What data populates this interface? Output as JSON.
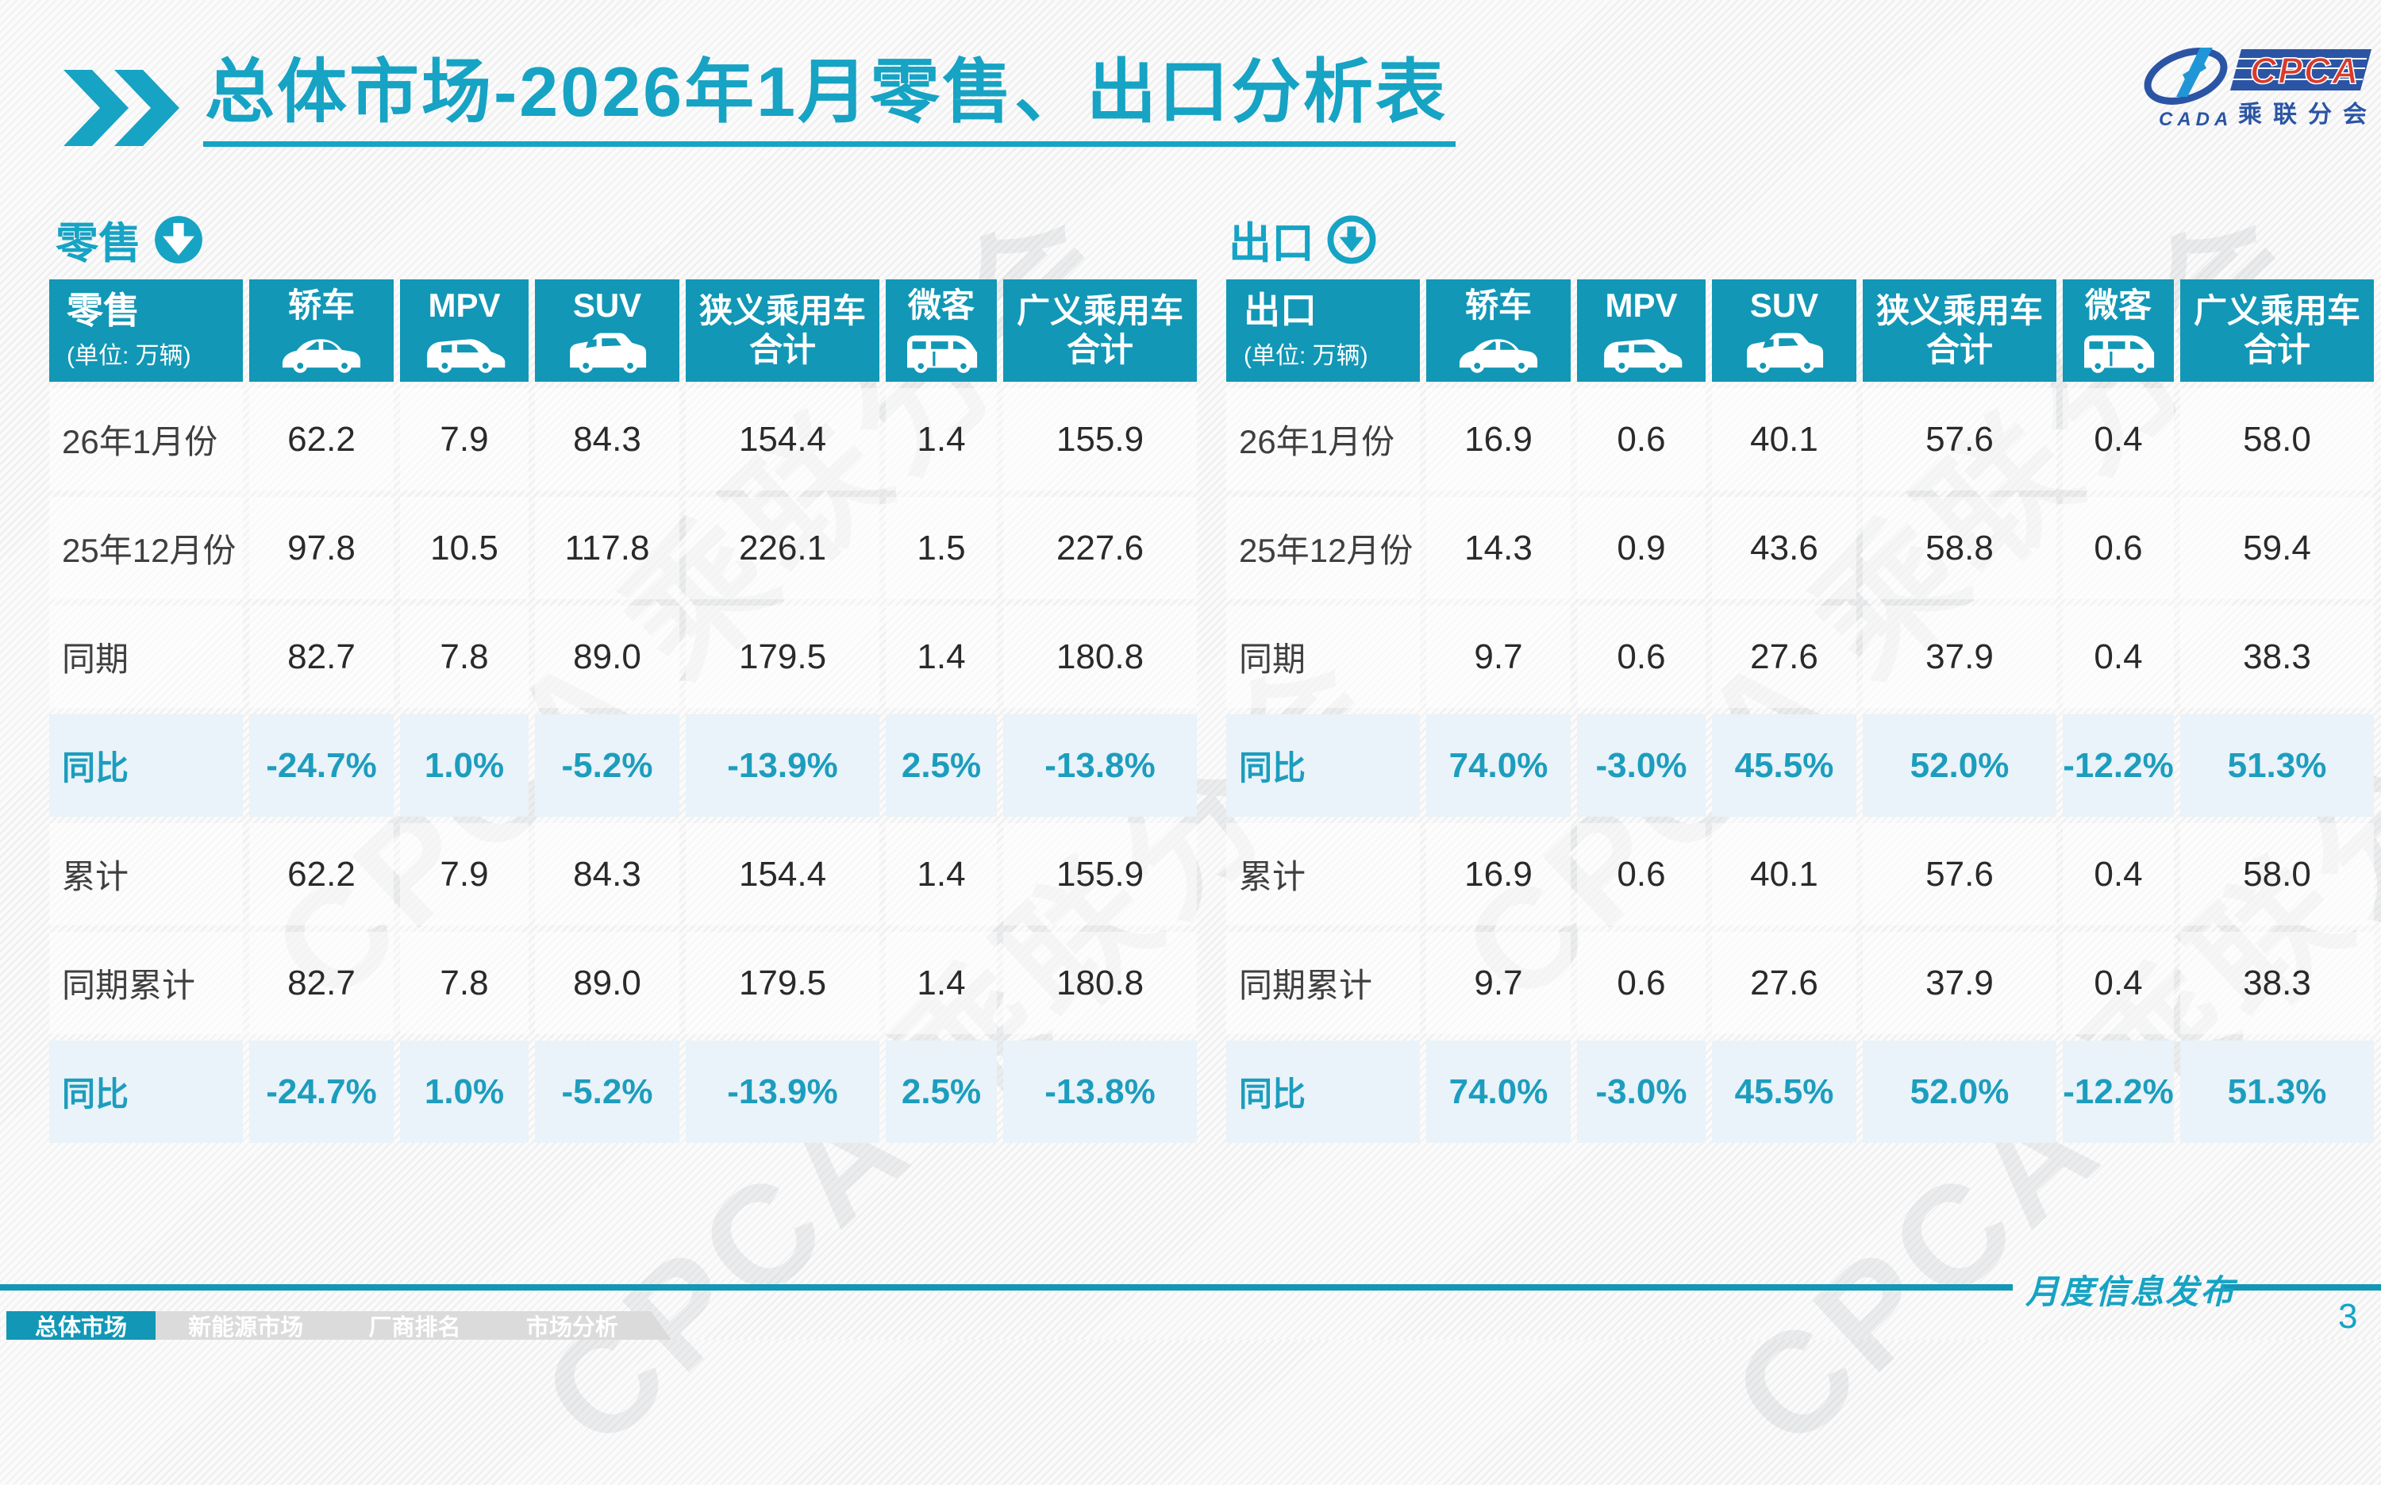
{
  "header": {
    "title": "总体市场-2026年1月零售、出口分析表",
    "logo": {
      "cada": "CADA",
      "cpca": "CPCA",
      "subtitle": "乘联分会"
    }
  },
  "unit_label": "(单位: 万辆)",
  "columns": [
    {
      "label": "轿车",
      "icon": "sedan-car-icon"
    },
    {
      "label": "MPV",
      "icon": "mpv-car-icon"
    },
    {
      "label": "SUV",
      "icon": "suv-car-icon"
    },
    {
      "label": "狭义乘用车\n合计",
      "icon": null
    },
    {
      "label": "微客",
      "icon": "microvan-icon"
    },
    {
      "label": "广义乘用车\n合计",
      "icon": null
    }
  ],
  "tables": [
    {
      "id": "retail",
      "section_label": "零售",
      "arrow_icon": "circle-down-arrow-filled-icon",
      "rows": [
        {
          "label": "26年1月份",
          "highlight": false,
          "values": [
            "62.2",
            "7.9",
            "84.3",
            "154.4",
            "1.4",
            "155.9"
          ]
        },
        {
          "label": "25年12月份",
          "highlight": false,
          "values": [
            "97.8",
            "10.5",
            "117.8",
            "226.1",
            "1.5",
            "227.6"
          ]
        },
        {
          "label": "同期",
          "highlight": false,
          "values": [
            "82.7",
            "7.8",
            "89.0",
            "179.5",
            "1.4",
            "180.8"
          ]
        },
        {
          "label": "同比",
          "highlight": true,
          "values": [
            "-24.7%",
            "1.0%",
            "-5.2%",
            "-13.9%",
            "2.5%",
            "-13.8%"
          ]
        },
        {
          "label": "累计",
          "highlight": false,
          "values": [
            "62.2",
            "7.9",
            "84.3",
            "154.4",
            "1.4",
            "155.9"
          ]
        },
        {
          "label": "同期累计",
          "highlight": false,
          "values": [
            "82.7",
            "7.8",
            "89.0",
            "179.5",
            "1.4",
            "180.8"
          ]
        },
        {
          "label": "同比",
          "highlight": true,
          "values": [
            "-24.7%",
            "1.0%",
            "-5.2%",
            "-13.9%",
            "2.5%",
            "-13.8%"
          ]
        }
      ]
    },
    {
      "id": "export",
      "section_label": "出口",
      "arrow_icon": "circle-down-arrow-outline-icon",
      "rows": [
        {
          "label": "26年1月份",
          "highlight": false,
          "values": [
            "16.9",
            "0.6",
            "40.1",
            "57.6",
            "0.4",
            "58.0"
          ]
        },
        {
          "label": "25年12月份",
          "highlight": false,
          "values": [
            "14.3",
            "0.9",
            "43.6",
            "58.8",
            "0.6",
            "59.4"
          ]
        },
        {
          "label": "同期",
          "highlight": false,
          "values": [
            "9.7",
            "0.6",
            "27.6",
            "37.9",
            "0.4",
            "38.3"
          ]
        },
        {
          "label": "同比",
          "highlight": true,
          "values": [
            "74.0%",
            "-3.0%",
            "45.5%",
            "52.0%",
            "-12.2%",
            "51.3%"
          ]
        },
        {
          "label": "累计",
          "highlight": false,
          "values": [
            "16.9",
            "0.6",
            "40.1",
            "57.6",
            "0.4",
            "58.0"
          ]
        },
        {
          "label": "同期累计",
          "highlight": false,
          "values": [
            "9.7",
            "0.6",
            "27.6",
            "37.9",
            "0.4",
            "38.3"
          ]
        },
        {
          "label": "同比",
          "highlight": true,
          "values": [
            "74.0%",
            "-3.0%",
            "45.5%",
            "52.0%",
            "-12.2%",
            "51.3%"
          ]
        }
      ]
    }
  ],
  "watermark_text": "CPCA 乘联分会",
  "footer": {
    "note": "月度信息发布",
    "page_number": "3",
    "tabs": [
      {
        "label": "总体市场",
        "active": true
      },
      {
        "label": "新能源市场",
        "active": false
      },
      {
        "label": "厂商排名",
        "active": false
      },
      {
        "label": "市场分析",
        "active": false
      }
    ]
  },
  "colors": {
    "teal": "#1297b6",
    "teal_bright": "#16a3c4",
    "highlight_bg": "#e9f3f9",
    "highlight_text": "#1d9dbe",
    "nav_gray": "#dbdbdb",
    "logo_blue": "#2b55a4",
    "logo_red": "#d93a2b"
  }
}
